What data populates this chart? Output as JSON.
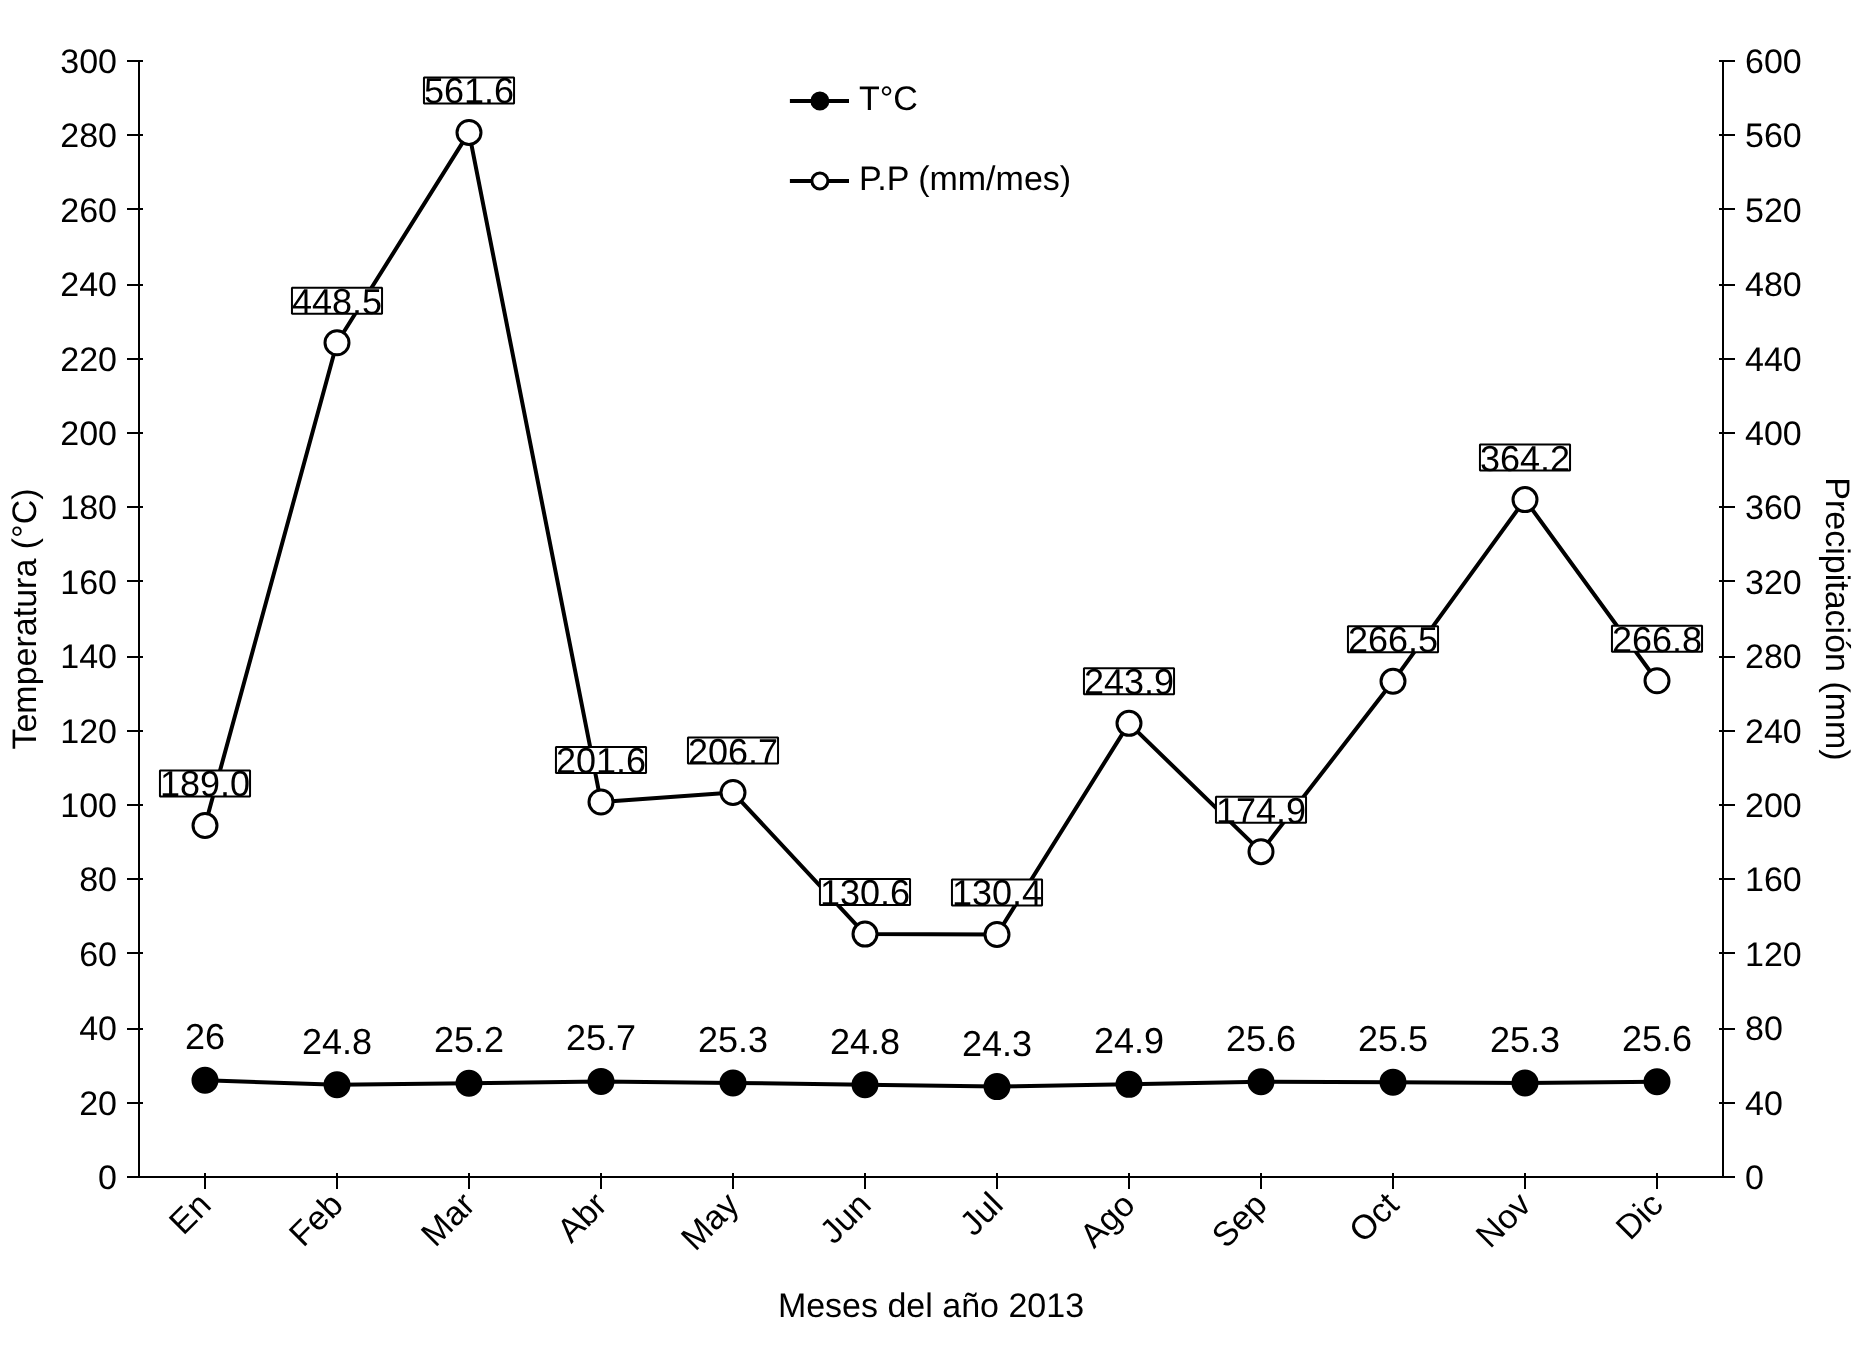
{
  "chart_data": {
    "type": "line",
    "xlabel": "Meses del año 2013",
    "ylabel": "Temperatura (°C)",
    "y2label": "Precipitación (mm)",
    "categories": [
      "En",
      "Feb",
      "Mar",
      "Abr",
      "May",
      "Jun",
      "Jul",
      "Ago",
      "Sep",
      "Oct",
      "Nov",
      "Dic"
    ],
    "ylim": [
      0,
      300
    ],
    "yticks": [
      0,
      20,
      40,
      60,
      80,
      100,
      120,
      140,
      160,
      180,
      200,
      220,
      240,
      260,
      280,
      300
    ],
    "y2lim": [
      0,
      600
    ],
    "y2ticks": [
      0,
      40,
      80,
      120,
      160,
      200,
      240,
      280,
      320,
      360,
      400,
      440,
      480,
      520,
      560,
      600
    ],
    "grid": false,
    "legend": "top",
    "line_style": "solid",
    "series": [
      {
        "name": "T°C",
        "color": "#000000",
        "marker": "circle",
        "values": [
          26,
          24.8,
          25.2,
          25.7,
          25.3,
          24.8,
          24.3,
          24.9,
          25.6,
          25.5,
          25.3,
          25.6
        ],
        "value_labels": [
          "26",
          "24.8",
          "25.2",
          "25.7",
          "25.3",
          "24.8",
          "24.3",
          "24.9",
          "25.6",
          "25.5",
          "25.3",
          "25.6"
        ]
      },
      {
        "name": "P.P (mm/mes)",
        "color": "#000000",
        "marker": "circle_open",
        "axis": "y2",
        "values": [
          189.0,
          448.5,
          561.6,
          201.6,
          206.7,
          130.6,
          130.4,
          243.9,
          174.9,
          266.5,
          364.2,
          266.8
        ],
        "value_labels": [
          "189.0",
          "448.5",
          "561.6",
          "201.6",
          "206.7",
          "130.6",
          "130.4",
          "243.9",
          "174.9",
          "266.5",
          "364.2",
          "266.8"
        ]
      }
    ]
  }
}
